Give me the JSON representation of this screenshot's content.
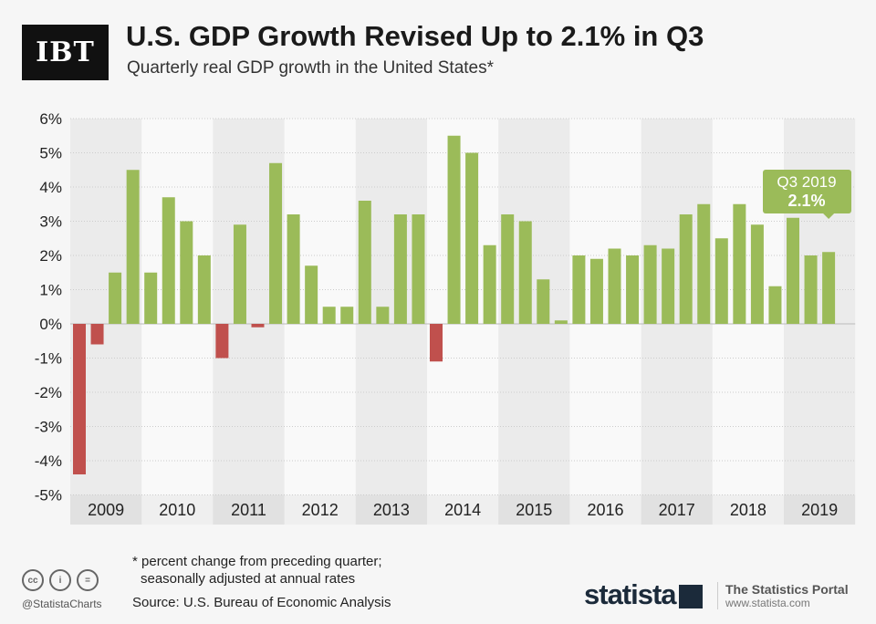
{
  "header": {
    "logo": "IBT",
    "title": "U.S. GDP Growth Revised Up to 2.1% in Q3",
    "subtitle": "Quarterly real GDP growth in the United States*"
  },
  "chart_data": {
    "type": "bar",
    "title": "U.S. GDP Growth Revised Up to 2.1% in Q3",
    "ylim": [
      -5,
      6
    ],
    "yticks": [
      "-5%",
      "-4%",
      "-3%",
      "-2%",
      "-1%",
      "0%",
      "1%",
      "2%",
      "3%",
      "4%",
      "5%",
      "6%"
    ],
    "years": [
      "2009",
      "2010",
      "2011",
      "2012",
      "2013",
      "2014",
      "2015",
      "2016",
      "2017",
      "2018",
      "2019"
    ],
    "values": [
      -4.4,
      -0.6,
      1.5,
      4.5,
      1.5,
      3.7,
      3.0,
      2.0,
      -1.0,
      2.9,
      -0.1,
      4.7,
      3.2,
      1.7,
      0.5,
      0.5,
      3.6,
      0.5,
      3.2,
      3.2,
      -1.1,
      5.5,
      5.0,
      2.3,
      3.2,
      3.0,
      1.3,
      0.1,
      2.0,
      1.9,
      2.2,
      2.0,
      2.3,
      2.2,
      3.2,
      3.5,
      2.5,
      3.5,
      2.9,
      1.1,
      3.1,
      2.0,
      2.1
    ],
    "grid": true,
    "colors": {
      "positive": "#9bbb59",
      "negative": "#c0504d",
      "band": "#ebebeb"
    },
    "annotation": {
      "label": "Q3 2019",
      "value": "2.1%"
    }
  },
  "footer": {
    "note_line1": "* percent change from preceding quarter;",
    "note_line2": "seasonally adjusted at annual rates",
    "source": "Source: U.S. Bureau of Economic Analysis",
    "handle": "@StatistaCharts",
    "brand": "statista",
    "portal": "The Statistics Portal",
    "url": "www.statista.com"
  }
}
